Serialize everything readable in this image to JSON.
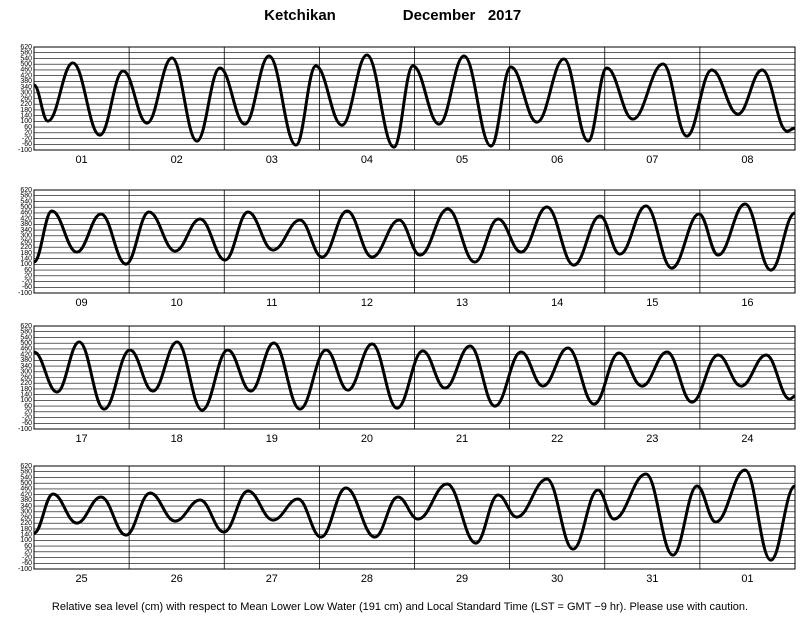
{
  "chart_data": [
    {
      "type": "line",
      "title": "Ketchikan",
      "subtitle": "December   2017",
      "categories": [
        "01",
        "02",
        "03",
        "04",
        "05",
        "06",
        "07",
        "08"
      ],
      "x": [
        0,
        3.5,
        9.8,
        16.6,
        22.5,
        28.5,
        34.8,
        41.1,
        46.9,
        53.2,
        59.3,
        66.1,
        71.1,
        77.7,
        84.0,
        90.8,
        95.6,
        102.2,
        108.5,
        115.3,
        120.3,
        126.9,
        133.7,
        139.8,
        144.5,
        151.1,
        158.7,
        164.7,
        171.0,
        177.6,
        183.7,
        190.0,
        192
      ],
      "values": [
        354,
        102,
        508,
        4,
        452,
        88,
        543,
        -38,
        473,
        81,
        557,
        -66,
        487,
        74,
        564,
        -80,
        487,
        81,
        557,
        -73,
        480,
        95,
        536,
        -38,
        473,
        116,
        501,
        -3,
        459,
        151,
        459,
        32,
        53
      ],
      "xlim": [
        0,
        192
      ],
      "ylim": [
        -100,
        620
      ],
      "yticks": [
        -100,
        -60,
        -20,
        20,
        60,
        100,
        140,
        180,
        220,
        260,
        300,
        340,
        380,
        420,
        460,
        500,
        540,
        580,
        620
      ],
      "color": "#000000",
      "grid": true
    },
    {
      "type": "line",
      "categories": [
        "09",
        "10",
        "11",
        "12",
        "13",
        "14",
        "15",
        "16"
      ],
      "x": [
        0,
        4.5,
        10.8,
        16.9,
        23.2,
        29.0,
        35.6,
        41.9,
        48.2,
        54.0,
        60.3,
        67.1,
        72.7,
        79.0,
        85.3,
        92.1,
        97.4,
        104.4,
        111.2,
        117.1,
        122.9,
        129.4,
        136.2,
        142.8,
        147.8,
        154.4,
        160.9,
        167.8,
        172.6,
        179.4,
        185.9,
        192
      ],
      "values": [
        116,
        473,
        186,
        452,
        102,
        466,
        193,
        417,
        130,
        466,
        200,
        410,
        151,
        473,
        151,
        410,
        165,
        487,
        116,
        417,
        186,
        501,
        95,
        438,
        172,
        508,
        74,
        452,
        165,
        522,
        60,
        459
      ],
      "xlim": [
        0,
        192
      ],
      "ylim": [
        -100,
        620
      ],
      "yticks": [
        -100,
        -60,
        -20,
        20,
        60,
        100,
        140,
        180,
        220,
        260,
        300,
        340,
        380,
        420,
        460,
        500,
        540,
        580,
        620
      ],
      "color": "#000000",
      "grid": true
    },
    {
      "type": "line",
      "categories": [
        "17",
        "18",
        "19",
        "20",
        "21",
        "22",
        "23",
        "24"
      ],
      "x": [
        0,
        5.8,
        11.4,
        17.7,
        24.2,
        30.0,
        36.1,
        42.4,
        48.9,
        54.7,
        60.5,
        67.1,
        73.7,
        79.2,
        85.3,
        91.6,
        98.1,
        103.7,
        110.0,
        116.3,
        122.9,
        128.4,
        134.7,
        141.3,
        147.6,
        153.4,
        159.7,
        166.0,
        172.6,
        178.4,
        184.7,
        190.7,
        192
      ],
      "values": [
        438,
        158,
        508,
        39,
        452,
        165,
        508,
        32,
        452,
        165,
        501,
        39,
        452,
        172,
        494,
        46,
        445,
        186,
        480,
        60,
        438,
        200,
        466,
        74,
        431,
        200,
        438,
        88,
        417,
        200,
        417,
        109,
        130
      ],
      "xlim": [
        0,
        192
      ],
      "ylim": [
        -100,
        620
      ],
      "yticks": [
        -100,
        -60,
        -20,
        20,
        60,
        100,
        140,
        180,
        220,
        260,
        300,
        340,
        380,
        420,
        460,
        500,
        540,
        580,
        620
      ],
      "color": "#000000",
      "grid": true
    },
    {
      "type": "line",
      "categories": [
        "25",
        "26",
        "27",
        "28",
        "29",
        "30",
        "31",
        "01"
      ],
      "x": [
        0,
        4.8,
        10.8,
        16.9,
        23.2,
        29.3,
        35.6,
        41.9,
        47.9,
        54.0,
        60.3,
        66.6,
        72.4,
        78.7,
        86.0,
        91.8,
        96.9,
        104.2,
        111.5,
        117.1,
        121.8,
        129.4,
        136.0,
        142.3,
        146.3,
        154.4,
        161.2,
        167.3,
        172.0,
        179.4,
        185.9,
        192
      ],
      "values": [
        151,
        424,
        221,
        403,
        137,
        431,
        235,
        382,
        158,
        445,
        242,
        389,
        123,
        466,
        123,
        403,
        249,
        494,
        81,
        417,
        263,
        529,
        39,
        452,
        249,
        564,
        -3,
        480,
        228,
        592,
        -38,
        480
      ],
      "xlim": [
        0,
        192
      ],
      "ylim": [
        -100,
        620
      ],
      "yticks": [
        -100,
        -60,
        -20,
        20,
        60,
        100,
        140,
        180,
        220,
        260,
        300,
        340,
        380,
        420,
        460,
        500,
        540,
        580,
        620
      ],
      "color": "#000000",
      "grid": true,
      "note": "Relative sea level (cm) with respect to Mean Lower Low Water (191 cm) and Local Standard Time (LST = GMT −9 hr). Please use with caution."
    }
  ]
}
